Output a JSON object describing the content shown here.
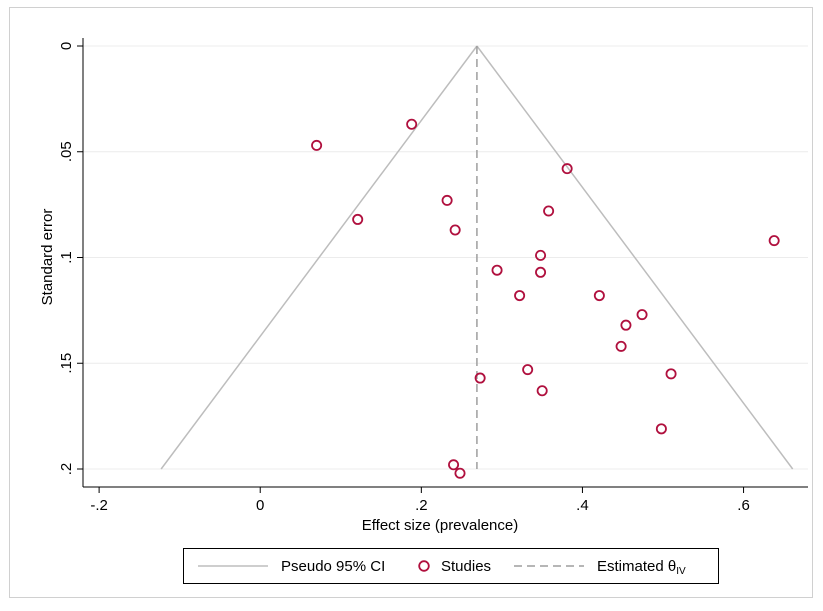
{
  "chart_data": {
    "type": "scatter",
    "title": "",
    "xlabel": "Effect size (prevalence)",
    "ylabel": "Standard error",
    "xlim": [
      -0.22,
      0.68
    ],
    "ylim": [
      0,
      0.2
    ],
    "y_reversed": true,
    "grid": true,
    "x_ticks": [
      -0.2,
      0,
      0.2,
      0.4,
      0.6
    ],
    "x_tick_labels": [
      "-.2",
      "0",
      ".2",
      ".4",
      ".6"
    ],
    "y_ticks": [
      0,
      0.05,
      0.1,
      0.15,
      0.2
    ],
    "y_tick_labels": [
      "0",
      ".05",
      ".1",
      ".15",
      ".2"
    ],
    "estimated_theta": 0.269,
    "ci_multiplier": 1.96,
    "legend": {
      "placement": "bottom",
      "entries": [
        {
          "label": "Pseudo 95% CI",
          "kind": "line"
        },
        {
          "label": "Studies",
          "kind": "marker"
        },
        {
          "label": "Estimated θ",
          "subscript": "IV",
          "kind": "dashed"
        }
      ]
    },
    "colors": {
      "marker": "#b0103e",
      "ci": "#bdbdbd",
      "theta": "#9e9e9e",
      "grid": "#ececec"
    },
    "series": [
      {
        "name": "Studies",
        "points": [
          {
            "x": 0.07,
            "y": 0.047
          },
          {
            "x": 0.188,
            "y": 0.037
          },
          {
            "x": 0.121,
            "y": 0.082
          },
          {
            "x": 0.232,
            "y": 0.073
          },
          {
            "x": 0.242,
            "y": 0.087
          },
          {
            "x": 0.381,
            "y": 0.058
          },
          {
            "x": 0.358,
            "y": 0.078
          },
          {
            "x": 0.348,
            "y": 0.099
          },
          {
            "x": 0.294,
            "y": 0.106
          },
          {
            "x": 0.348,
            "y": 0.107
          },
          {
            "x": 0.322,
            "y": 0.118
          },
          {
            "x": 0.421,
            "y": 0.118
          },
          {
            "x": 0.474,
            "y": 0.127
          },
          {
            "x": 0.454,
            "y": 0.132
          },
          {
            "x": 0.448,
            "y": 0.142
          },
          {
            "x": 0.638,
            "y": 0.092
          },
          {
            "x": 0.273,
            "y": 0.157
          },
          {
            "x": 0.332,
            "y": 0.153
          },
          {
            "x": 0.35,
            "y": 0.163
          },
          {
            "x": 0.51,
            "y": 0.155
          },
          {
            "x": 0.498,
            "y": 0.181
          },
          {
            "x": 0.24,
            "y": 0.198
          },
          {
            "x": 0.248,
            "y": 0.202
          }
        ]
      }
    ]
  }
}
